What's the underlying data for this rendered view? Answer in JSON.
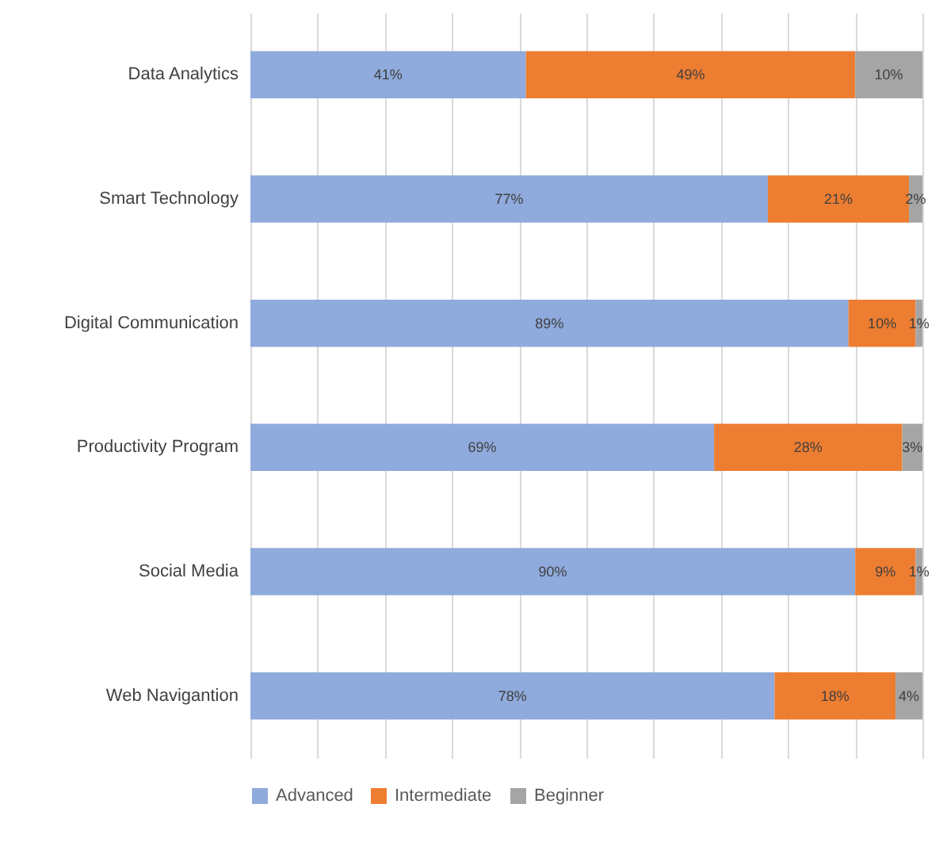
{
  "chart_data": {
    "type": "bar",
    "orientation": "horizontal",
    "stacked": true,
    "categories": [
      "Data Analytics",
      "Smart Technology",
      "Digital Communication",
      "Productivity Program",
      "Social Media",
      "Web Navigantion"
    ],
    "series": [
      {
        "name": "Advanced",
        "color": "#8faadc",
        "values": [
          41,
          77,
          89,
          69,
          90,
          78
        ],
        "value_labels": [
          "41%",
          "77%",
          "89%",
          "69%",
          "90%",
          "78%"
        ]
      },
      {
        "name": "Intermediate",
        "color": "#ed7d31",
        "values": [
          49,
          21,
          10,
          28,
          9,
          18
        ],
        "value_labels": [
          "49%",
          "21%",
          "10%",
          "28%",
          "9%",
          "18%"
        ]
      },
      {
        "name": "Beginner",
        "color": "#a5a5a5",
        "values": [
          10,
          2,
          1,
          3,
          1,
          4
        ],
        "value_labels": [
          "10%",
          "2%",
          "1%",
          "3%",
          "1%",
          "4%"
        ]
      }
    ],
    "xlim": [
      0,
      100
    ],
    "xticks": [
      {
        "value": 0,
        "label": null
      },
      {
        "value": 10,
        "label": null
      },
      {
        "value": 20,
        "label": null
      },
      {
        "value": 30,
        "label": null
      },
      {
        "value": 40,
        "label": null
      },
      {
        "value": 50,
        "label": null
      },
      {
        "value": 60,
        "label": null
      },
      {
        "value": 70,
        "label": null
      },
      {
        "value": 80,
        "label": null
      },
      {
        "value": 90,
        "label": null
      },
      {
        "value": 100,
        "label": null
      }
    ],
    "tick_labels": "y",
    "grid": "x",
    "legend": "bottom"
  }
}
